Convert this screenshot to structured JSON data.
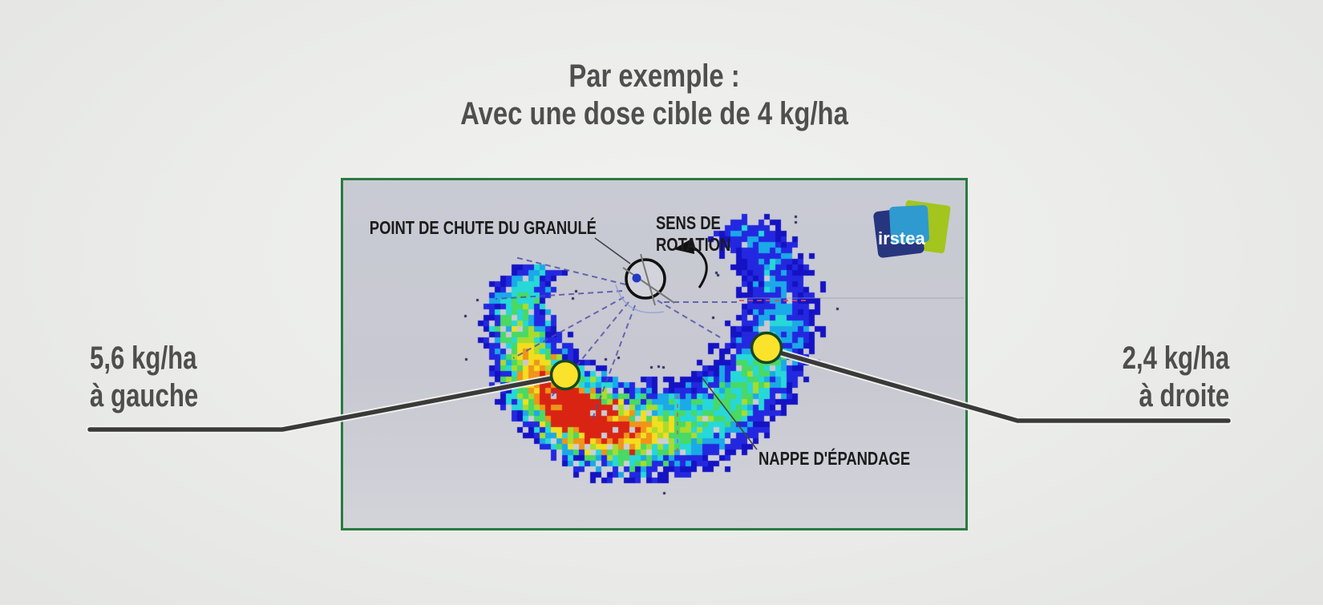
{
  "title": {
    "line1": "Par exemple :",
    "line2": "Avec une dose cible de 4 kg/ha"
  },
  "annotations": {
    "left": {
      "value": "5,6 kg/ha",
      "side": "à gauche"
    },
    "right": {
      "value": "2,4 kg/ha",
      "side": "à droite"
    }
  },
  "figure": {
    "labels": {
      "drop_point": "POINT DE CHUTE DU GRANULÉ",
      "rotation_line1": "SENS DE",
      "rotation_line2": "ROTATION",
      "spread_sheet": "NAPPE D'ÉPANDAGE"
    },
    "logo_text": "irstea"
  },
  "colors": {
    "frame_border": "#2a7a40",
    "marker_yellow": "#fbe32b",
    "marker_outline": "#17471f",
    "callout_line": "#3a3a38",
    "title_text": "#4f4f4f",
    "logo_green": "#a3c51e",
    "logo_dark_blue": "#27357e",
    "logo_light_blue": "#2f9ad0",
    "heat_scale": [
      "#1512c4",
      "#2328e0",
      "#1ba9e8",
      "#27d8d8",
      "#49d964",
      "#a8dc2d",
      "#f2de1f",
      "#f0941a",
      "#d92414"
    ]
  }
}
